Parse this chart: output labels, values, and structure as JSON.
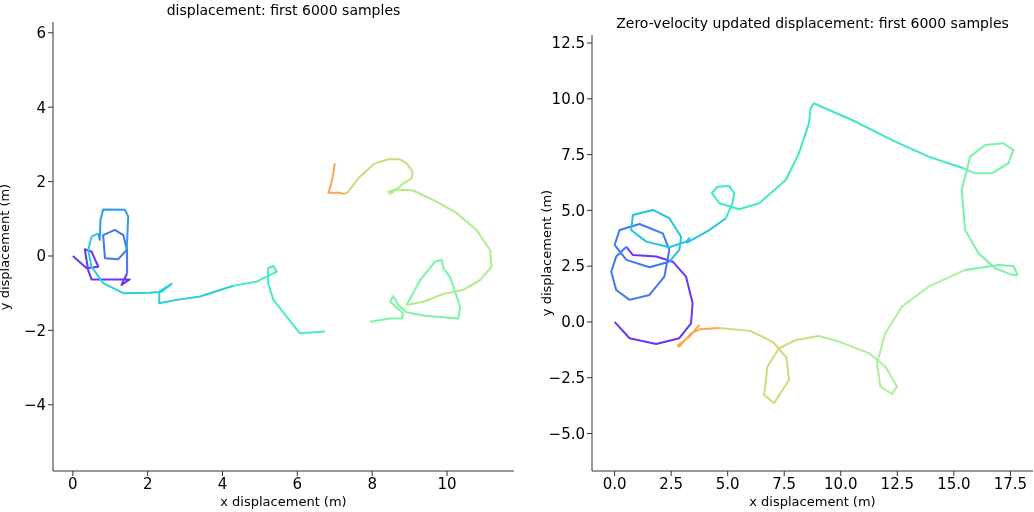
{
  "chart_data": [
    {
      "type": "line",
      "title": "displacement: first 6000 samples",
      "xlabel": "x displacement (m)",
      "ylabel": "y displacement (m)",
      "xlim": [
        -0.53,
        11.79
      ],
      "ylim": [
        -5.78,
        6.29
      ],
      "xticks": [
        0,
        2,
        4,
        6,
        8,
        10
      ],
      "yticks": [
        {
          "value": -4,
          "label": "−4"
        },
        {
          "value": -2,
          "label": "−2"
        },
        0,
        2,
        4,
        6
      ],
      "grid": false,
      "marker": "none",
      "line_style": "solid",
      "series": [
        {
          "color": "#6a35f8",
          "x": [
            0,
            0.37,
            0.68,
            0.5,
            0.32,
            0.41,
            0.5,
            1.52,
            1.3,
            1.45
          ],
          "values": [
            0,
            -0.33,
            -0.29,
            0.12,
            0.18,
            -0.38,
            -0.63,
            -0.63,
            -0.78,
            -0.47
          ]
        },
        {
          "color": "#3f78f0",
          "x": [
            1.45,
            1.45,
            1.35,
            1.12,
            0.81,
            0.86,
            1.21,
            1.44
          ],
          "values": [
            -0.47,
            0.16,
            0.56,
            0.7,
            0.56,
            -0.06,
            -0.09,
            0.16
          ]
        },
        {
          "color": "#2a9ee8",
          "x": [
            1.44,
            1.48,
            1.39,
            0.81,
            0.74,
            0.72,
            0.68
          ],
          "values": [
            0.16,
            1.06,
            1.24,
            1.25,
            0.97,
            0.43,
            0.61
          ]
        },
        {
          "color": "#28d0dc",
          "x": [
            0.68,
            0.5,
            0.41,
            0.5,
            0.81,
            1.35,
            2.06,
            2.37,
            2.64,
            2.31,
            2.31,
            2.77,
            3.4,
            4.29
          ],
          "values": [
            0.61,
            0.52,
            0.16,
            -0.29,
            -0.73,
            -1.0,
            -0.99,
            -0.96,
            -0.75,
            -0.96,
            -1.27,
            -1.18,
            -1.09,
            -0.8
          ]
        },
        {
          "color": "#48ecc8",
          "x": [
            4.29,
            4.91,
            5.45,
            5.36,
            5.22,
            5.22,
            5.36,
            6.07,
            6.74
          ],
          "values": [
            -0.8,
            -0.69,
            -0.42,
            -0.27,
            -0.33,
            -0.73,
            -1.18,
            -2.08,
            -2.03
          ]
        },
        {
          "color": "#7cf5a8",
          "x": [
            7.94,
            8.48,
            8.79,
            8.83,
            8.48,
            8.56,
            8.7,
            8.92,
            9.37,
            10.3,
            10.35,
            10.08,
            9.9,
            9.86,
            9.68,
            9.28,
            8.92
          ],
          "values": [
            -1.77,
            -1.68,
            -1.68,
            -1.54,
            -1.23,
            -1.08,
            -1.32,
            -1.51,
            -1.6,
            -1.68,
            -1.36,
            -0.56,
            -0.33,
            -0.11,
            -0.15,
            -0.65,
            -1.32
          ]
        },
        {
          "color": "#b0ec88",
          "x": [
            8.92,
            9.37,
            9.9,
            10.44,
            10.88,
            11.19,
            11.15,
            10.79,
            10.26,
            9.72,
            9.1,
            8.65,
            8.48,
            8.43,
            8.65,
            8.88,
            9.06
          ],
          "values": [
            -1.32,
            -1.23,
            -1.02,
            -0.91,
            -0.65,
            -0.29,
            0.16,
            0.7,
            1.15,
            1.46,
            1.76,
            1.79,
            1.67,
            1.73,
            1.8,
            1.98,
            2.09
          ]
        },
        {
          "color": "#d4d878",
          "x": [
            9.06,
            9.08,
            8.92,
            8.74,
            8.43,
            8.07,
            7.67,
            7.36,
            7.27
          ],
          "values": [
            2.09,
            2.27,
            2.49,
            2.6,
            2.6,
            2.49,
            2.13,
            1.73,
            1.67
          ]
        },
        {
          "color": "#ffa552",
          "x": [
            7.27,
            7.09,
            6.83,
            6.92,
            6.96,
            7.0
          ],
          "values": [
            1.67,
            1.7,
            1.7,
            2.0,
            2.22,
            2.49
          ]
        }
      ]
    },
    {
      "type": "line",
      "title": "Zero-velocity updated displacement: first 6000 samples",
      "xlabel": "x displacement (m)",
      "ylabel": "y displacement (m)",
      "xlim": [
        -1.0,
        18.5
      ],
      "ylim": [
        -6.68,
        12.86
      ],
      "xticks": [
        {
          "value": 0,
          "label": "0.0"
        },
        2.5,
        {
          "value": 5,
          "label": "5.0"
        },
        7.5,
        {
          "value": 10,
          "label": "10.0"
        },
        12.5,
        {
          "value": 15,
          "label": "15.0"
        },
        17.5
      ],
      "yticks": [
        {
          "value": -5,
          "label": "−5.0"
        },
        {
          "value": -2.5,
          "label": "−2.5"
        },
        {
          "value": 0,
          "label": "0.0"
        },
        2.5,
        {
          "value": 5,
          "label": "5.0"
        },
        7.5,
        {
          "value": 10,
          "label": "10.0"
        },
        12.5
      ],
      "grid": false,
      "marker": "none",
      "line_style": "solid",
      "series": [
        {
          "color": "#6a35f8",
          "x": [
            0,
            0.66,
            1.84,
            2.86,
            3.38,
            3.45,
            3.16,
            2.57,
            1.84,
            0.81,
            0.52
          ],
          "values": [
            0,
            -0.73,
            -0.99,
            -0.73,
            -0.06,
            0.84,
            2.03,
            2.7,
            2.93,
            3.0,
            3.37
          ]
        },
        {
          "color": "#3f78f0",
          "x": [
            0.52,
            0.07,
            -0.15,
            0.07,
            0.66,
            1.54,
            2.2,
            2.42,
            2.13,
            1.1,
            0.22,
            0,
            0.52,
            1.54,
            2.42
          ],
          "values": [
            3.37,
            2.93,
            2.25,
            1.43,
            0.99,
            1.21,
            2.03,
            3.23,
            3.97,
            4.39,
            4.12,
            3.45,
            2.78,
            2.45,
            2.7
          ]
        },
        {
          "color": "#22c4e0",
          "x": [
            2.42,
            2.86,
            2.94,
            2.42,
            1.69,
            0.81,
            0.73,
            1.4,
            2.42,
            3.16,
            3.31,
            3.2,
            4.19,
            4.92
          ],
          "values": [
            2.7,
            3.23,
            3.82,
            4.65,
            5.02,
            4.79,
            4.12,
            3.6,
            3.35,
            3.6,
            3.75,
            3.55,
            4.12,
            4.65
          ]
        },
        {
          "color": "#40e8c8",
          "x": [
            4.92,
            5.21,
            5.29,
            5.07,
            4.55,
            4.3,
            4.63,
            5.51,
            6.39,
            7.57,
            8.15,
            8.59,
            8.67,
            8.81,
            9.48,
            10.5,
            12.41,
            13.88,
            15.42
          ],
          "values": [
            4.65,
            5.32,
            5.77,
            6.09,
            6.06,
            5.77,
            5.32,
            5.05,
            5.32,
            6.36,
            7.56,
            8.9,
            9.57,
            9.8,
            9.5,
            9.05,
            8.08,
            7.41,
            6.89
          ]
        },
        {
          "color": "#78f2a8",
          "x": [
            15.42,
            15.94,
            16.67,
            17.41,
            17.63,
            17.19,
            16.38,
            15.72,
            15.35,
            15.5,
            16.09,
            16.82,
            17.56,
            17.82,
            17.63,
            16.97,
            15.5
          ],
          "values": [
            6.89,
            6.66,
            6.66,
            7.11,
            7.71,
            8.01,
            7.93,
            7.41,
            5.91,
            4.12,
            3.08,
            2.41,
            2.11,
            2.11,
            2.51,
            2.55,
            2.33
          ]
        },
        {
          "color": "#aef09a",
          "x": [
            15.5,
            13.88,
            12.71,
            11.97,
            11.6,
            11.75,
            12.27,
            12.49,
            11.97,
            11.24,
            9.92,
            9.03
          ],
          "values": [
            2.33,
            1.58,
            0.69,
            -0.51,
            -1.85,
            -2.9,
            -3.23,
            -2.9,
            -2.0,
            -1.4,
            -0.88,
            -0.63
          ]
        },
        {
          "color": "#d4d878",
          "x": [
            9.03,
            8.01,
            7.27,
            6.76,
            6.61,
            7.05,
            7.71,
            7.6,
            7.0,
            6.0,
            4.63
          ],
          "values": [
            -0.63,
            -0.81,
            -1.18,
            -2.0,
            -3.27,
            -3.63,
            -2.6,
            -1.6,
            -0.9,
            -0.4,
            -0.27
          ]
        },
        {
          "color": "#ffa552",
          "x": [
            4.63,
            3.75,
            3.38,
            2.86,
            2.8,
            3.31,
            3.75
          ],
          "values": [
            -0.27,
            -0.33,
            -0.51,
            -1.1,
            -1.05,
            -0.66,
            -0.13
          ]
        }
      ]
    }
  ]
}
